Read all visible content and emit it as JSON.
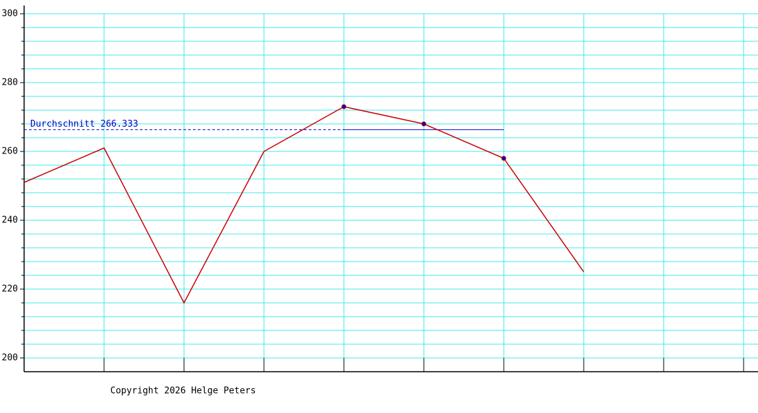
{
  "chart_data": {
    "type": "line",
    "x": [
      0,
      1,
      2,
      3,
      4,
      5,
      6,
      7
    ],
    "series": [
      {
        "color": "#cc0000",
        "values": [
          251,
          261,
          216,
          260,
          273,
          268,
          258,
          225
        ]
      }
    ],
    "xlim": [
      0,
      9.18
    ],
    "xgrid": [
      1,
      2,
      3,
      4,
      5,
      6,
      7,
      8,
      9
    ],
    "ylim": [
      196,
      302.4
    ],
    "yticks": [
      200,
      220,
      240,
      260,
      280,
      300
    ],
    "yminor": [
      204,
      208,
      212,
      216,
      224,
      228,
      232,
      236,
      244,
      248,
      252,
      256,
      264,
      268,
      272,
      276,
      284,
      288,
      292,
      296
    ],
    "grid": true,
    "grid_color": "#40e8e8",
    "average": {
      "label": "Durchschnitt 266.333",
      "value": 266.333,
      "xrange": [
        4,
        6
      ],
      "color": "#0000cc"
    },
    "footer": "Copyright 2026 Helge Peters"
  }
}
